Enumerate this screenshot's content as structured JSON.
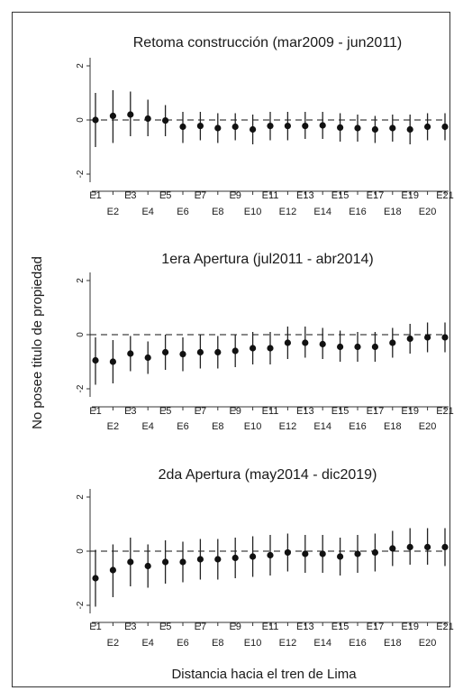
{
  "figure": {
    "ylabel": "No posee titulo de propiedad",
    "xlabel": "Distancia hacia el tren de Lima"
  },
  "chart_data": [
    {
      "type": "scatter",
      "title": "Retoma construcción (mar2009 - jun2011)",
      "categories": [
        "E1",
        "E2",
        "E3",
        "E4",
        "E5",
        "E6",
        "E7",
        "E8",
        "E9",
        "E10",
        "E11",
        "E12",
        "E13",
        "E14",
        "E15",
        "E16",
        "E17",
        "E18",
        "E19",
        "E20",
        "E21"
      ],
      "values": [
        0.0,
        0.15,
        0.2,
        0.05,
        -0.02,
        -0.25,
        -0.22,
        -0.3,
        -0.25,
        -0.35,
        -0.22,
        -0.22,
        -0.22,
        -0.2,
        -0.28,
        -0.3,
        -0.35,
        -0.3,
        -0.35,
        -0.25,
        -0.25
      ],
      "ci_low": [
        -1.0,
        -0.85,
        -0.6,
        -0.6,
        -0.6,
        -0.85,
        -0.75,
        -0.85,
        -0.75,
        -0.9,
        -0.75,
        -0.75,
        -0.7,
        -0.7,
        -0.8,
        -0.8,
        -0.85,
        -0.8,
        -0.9,
        -0.75,
        -0.75
      ],
      "ci_high": [
        1.0,
        1.1,
        1.05,
        0.75,
        0.55,
        0.3,
        0.3,
        0.25,
        0.25,
        0.2,
        0.3,
        0.3,
        0.3,
        0.3,
        0.25,
        0.2,
        0.15,
        0.2,
        0.2,
        0.25,
        0.25
      ],
      "yticks": [
        -2,
        0,
        2
      ],
      "ylim": [
        -2.3,
        2.3
      ],
      "reference_line": 0
    },
    {
      "type": "scatter",
      "title": "1era Apertura (jul2011 - abr2014)",
      "categories": [
        "E1",
        "E2",
        "E3",
        "E4",
        "E5",
        "E6",
        "E7",
        "E8",
        "E9",
        "E10",
        "E11",
        "E12",
        "E13",
        "E14",
        "E15",
        "E16",
        "E17",
        "E18",
        "E19",
        "E20",
        "E21"
      ],
      "values": [
        -0.95,
        -1.0,
        -0.7,
        -0.85,
        -0.65,
        -0.72,
        -0.65,
        -0.65,
        -0.6,
        -0.5,
        -0.5,
        -0.3,
        -0.3,
        -0.35,
        -0.45,
        -0.45,
        -0.45,
        -0.3,
        -0.15,
        -0.1,
        -0.1
      ],
      "ci_low": [
        -1.85,
        -1.8,
        -1.35,
        -1.45,
        -1.3,
        -1.35,
        -1.25,
        -1.25,
        -1.2,
        -1.1,
        -1.1,
        -0.9,
        -0.85,
        -0.9,
        -1.0,
        -1.0,
        -1.0,
        -0.85,
        -0.7,
        -0.65,
        -0.65
      ],
      "ci_high": [
        -0.1,
        -0.2,
        -0.05,
        -0.25,
        0.0,
        -0.1,
        0.0,
        -0.05,
        0.0,
        0.1,
        0.1,
        0.3,
        0.3,
        0.25,
        0.15,
        0.1,
        0.1,
        0.25,
        0.4,
        0.45,
        0.45
      ],
      "yticks": [
        -2,
        0,
        2
      ],
      "ylim": [
        -2.3,
        2.3
      ],
      "reference_line": 0
    },
    {
      "type": "scatter",
      "title": "2da Apertura (may2014 - dic2019)",
      "categories": [
        "E1",
        "E2",
        "E3",
        "E4",
        "E5",
        "E6",
        "E7",
        "E8",
        "E9",
        "E10",
        "E11",
        "E12",
        "E13",
        "E14",
        "E15",
        "E16",
        "E17",
        "E18",
        "E19",
        "E20",
        "E21"
      ],
      "values": [
        -1.0,
        -0.7,
        -0.4,
        -0.55,
        -0.4,
        -0.4,
        -0.3,
        -0.3,
        -0.25,
        -0.2,
        -0.15,
        -0.05,
        -0.1,
        -0.1,
        -0.2,
        -0.1,
        -0.05,
        0.1,
        0.15,
        0.15,
        0.15
      ],
      "ci_low": [
        -2.05,
        -1.7,
        -1.3,
        -1.35,
        -1.2,
        -1.15,
        -1.05,
        -1.05,
        -1.0,
        -0.95,
        -0.9,
        -0.75,
        -0.8,
        -0.8,
        -0.9,
        -0.8,
        -0.75,
        -0.55,
        -0.5,
        -0.5,
        -0.55
      ],
      "ci_high": [
        0.05,
        0.25,
        0.5,
        0.25,
        0.4,
        0.35,
        0.45,
        0.45,
        0.5,
        0.55,
        0.6,
        0.65,
        0.6,
        0.6,
        0.5,
        0.6,
        0.65,
        0.75,
        0.85,
        0.85,
        0.85
      ],
      "yticks": [
        -2,
        0,
        2
      ],
      "ylim": [
        -2.3,
        2.3
      ],
      "reference_line": 0
    }
  ]
}
